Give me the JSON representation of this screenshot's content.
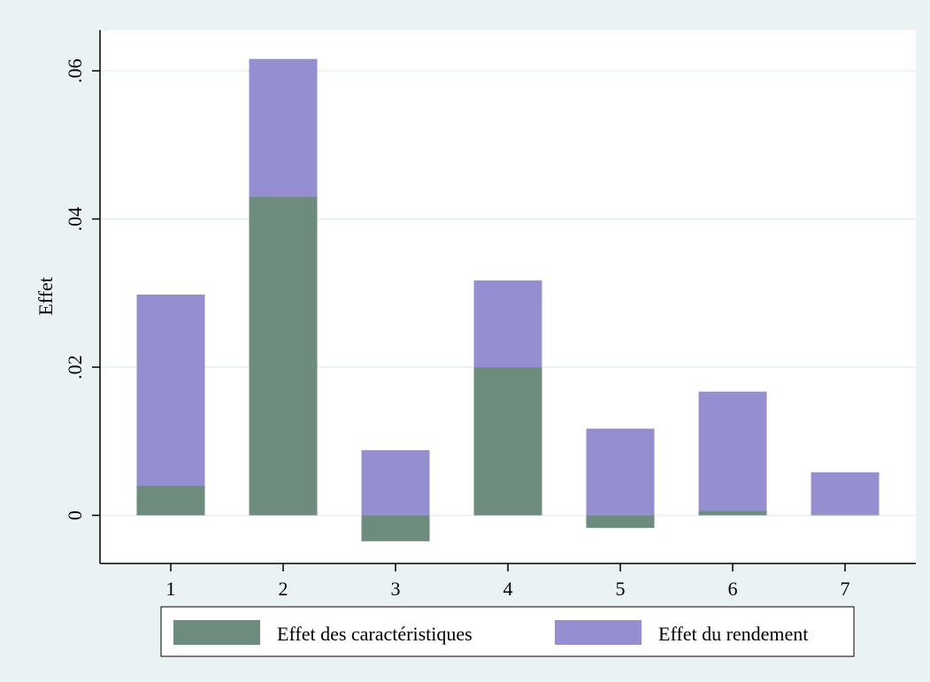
{
  "chart_data": {
    "type": "bar",
    "stacked": true,
    "title": "",
    "xlabel": "",
    "ylabel": "Effet",
    "categories": [
      "1",
      "2",
      "3",
      "4",
      "5",
      "6",
      "7"
    ],
    "series": [
      {
        "name": "Effet des caractéristiques",
        "color": "#6d8c7e",
        "values": [
          0.004,
          0.043,
          -0.0035,
          0.02,
          -0.0017,
          0.0006,
          0.0001
        ]
      },
      {
        "name": "Effet du rendement",
        "color": "#958fd2",
        "values": [
          0.0258,
          0.0186,
          0.0088,
          0.0117,
          0.0117,
          0.0161,
          0.0057
        ]
      }
    ],
    "ylim": [
      -0.0065,
      0.0655
    ],
    "yticks": [
      0,
      0.02,
      0.04,
      0.06
    ],
    "ytick_labels": [
      "0",
      ".02",
      ".04",
      ".06"
    ],
    "grid": true,
    "legend_position": "bottom",
    "colors": {
      "background": "#eaf2f3",
      "plot_background": "#ffffff",
      "gridline": "#eaf2f3"
    }
  }
}
